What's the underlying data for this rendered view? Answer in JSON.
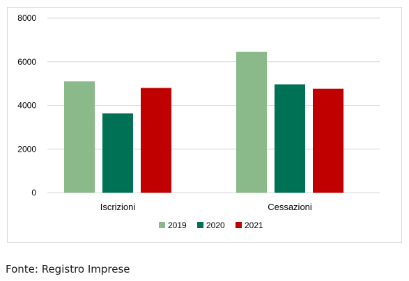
{
  "chart_data": {
    "type": "bar",
    "categories": [
      "Iscrizioni",
      "Cessazioni"
    ],
    "series": [
      {
        "name": "2019",
        "color": "#8ab98a",
        "values": [
          5100,
          6450
        ]
      },
      {
        "name": "2020",
        "color": "#007155",
        "values": [
          3630,
          4960
        ]
      },
      {
        "name": "2021",
        "color": "#c00000",
        "values": [
          4800,
          4760
        ]
      }
    ],
    "ylim": [
      0,
      8000
    ],
    "yticks": [
      0,
      2000,
      4000,
      6000,
      8000
    ],
    "grid": "horizontal",
    "legend": "bottom-center"
  },
  "footer": {
    "source": "Fonte: Registro Imprese"
  }
}
